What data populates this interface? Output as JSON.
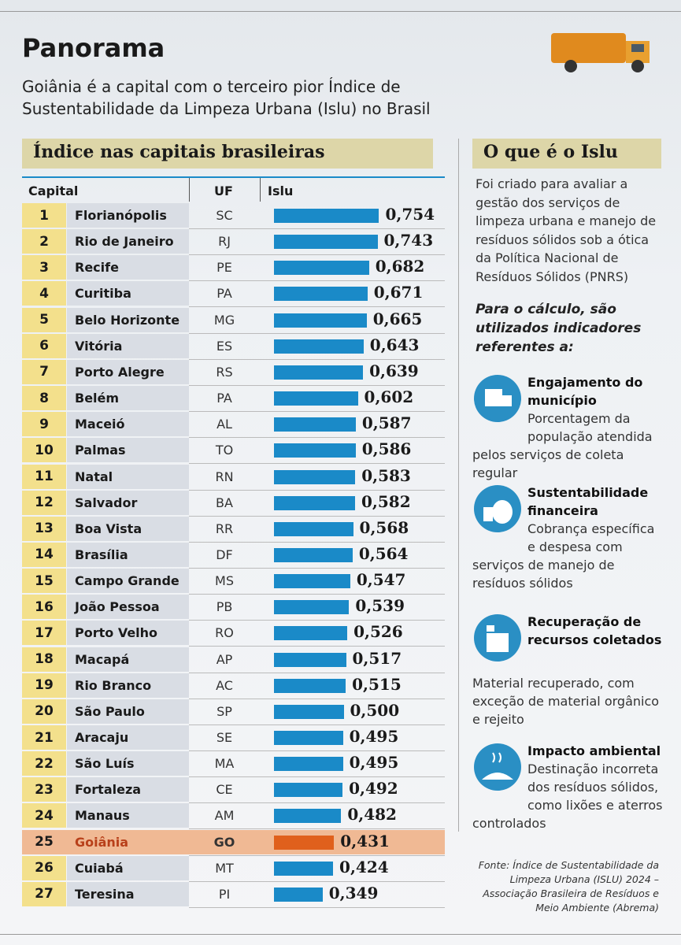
{
  "header": {
    "title": "Panorama",
    "subtitle": [
      "Goiânia é a capital com o terceiro pior Índice de",
      "Sustentabilidade da Limpeza Urbana (Islu) no Brasil"
    ]
  },
  "table": {
    "title": "Índice nas capitais brasileiras",
    "columns": [
      "Capital",
      "UF",
      "Islu"
    ],
    "rows": [
      {
        "rank": 1,
        "capital": "Florianópolis",
        "uf": "SC",
        "islu": {
          "value": 0.754,
          "label": "0,754"
        }
      },
      {
        "rank": 2,
        "capital": "Rio de Janeiro",
        "uf": "RJ",
        "islu": {
          "value": 0.743,
          "label": "0,743"
        }
      },
      {
        "rank": 3,
        "capital": "Recife",
        "uf": "PE",
        "islu": {
          "value": 0.682,
          "label": "0,682"
        }
      },
      {
        "rank": 4,
        "capital": "Curitiba",
        "uf": "PA",
        "islu": {
          "value": 0.671,
          "label": "0,671"
        }
      },
      {
        "rank": 5,
        "capital": "Belo Horizonte",
        "uf": "MG",
        "islu": {
          "value": 0.665,
          "label": "0,665"
        }
      },
      {
        "rank": 6,
        "capital": "Vitória",
        "uf": "ES",
        "islu": {
          "value": 0.643,
          "label": "0,643"
        }
      },
      {
        "rank": 7,
        "capital": "Porto Alegre",
        "uf": "RS",
        "islu": {
          "value": 0.639,
          "label": "0,639"
        }
      },
      {
        "rank": 8,
        "capital": "Belém",
        "uf": "PA",
        "islu": {
          "value": 0.602,
          "label": "0,602"
        }
      },
      {
        "rank": 9,
        "capital": "Maceió",
        "uf": "AL",
        "islu": {
          "value": 0.587,
          "label": "0,587"
        }
      },
      {
        "rank": 10,
        "capital": "Palmas",
        "uf": "TO",
        "islu": {
          "value": 0.586,
          "label": "0,586"
        }
      },
      {
        "rank": 11,
        "capital": "Natal",
        "uf": "RN",
        "islu": {
          "value": 0.583,
          "label": "0,583"
        }
      },
      {
        "rank": 12,
        "capital": "Salvador",
        "uf": "BA",
        "islu": {
          "value": 0.582,
          "label": "0,582"
        }
      },
      {
        "rank": 13,
        "capital": "Boa Vista",
        "uf": "RR",
        "islu": {
          "value": 0.568,
          "label": "0,568"
        }
      },
      {
        "rank": 14,
        "capital": "Brasília",
        "uf": "DF",
        "islu": {
          "value": 0.564,
          "label": "0,564"
        }
      },
      {
        "rank": 15,
        "capital": "Campo Grande",
        "uf": "MS",
        "islu": {
          "value": 0.547,
          "label": "0,547"
        }
      },
      {
        "rank": 16,
        "capital": "João Pessoa",
        "uf": "PB",
        "islu": {
          "value": 0.539,
          "label": "0,539"
        }
      },
      {
        "rank": 17,
        "capital": "Porto Velho",
        "uf": "RO",
        "islu": {
          "value": 0.526,
          "label": "0,526"
        }
      },
      {
        "rank": 18,
        "capital": "Macapá",
        "uf": "AP",
        "islu": {
          "value": 0.517,
          "label": "0,517"
        }
      },
      {
        "rank": 19,
        "capital": "Rio Branco",
        "uf": "AC",
        "islu": {
          "value": 0.515,
          "label": "0,515"
        }
      },
      {
        "rank": 20,
        "capital": "São Paulo",
        "uf": "SP",
        "islu": {
          "value": 0.5,
          "label": "0,500"
        }
      },
      {
        "rank": 21,
        "capital": "Aracaju",
        "uf": "SE",
        "islu": {
          "value": 0.495,
          "label": "0,495"
        }
      },
      {
        "rank": 22,
        "capital": "São Luís",
        "uf": "MA",
        "islu": {
          "value": 0.495,
          "label": "0,495"
        }
      },
      {
        "rank": 23,
        "capital": "Fortaleza",
        "uf": "CE",
        "islu": {
          "value": 0.492,
          "label": "0,492"
        }
      },
      {
        "rank": 24,
        "capital": "Manaus",
        "uf": "AM",
        "islu": {
          "value": 0.482,
          "label": "0,482"
        }
      },
      {
        "rank": 25,
        "capital": "Goiânia",
        "uf": "GO",
        "islu": {
          "value": 0.431,
          "label": "0,431"
        },
        "highlight": true
      },
      {
        "rank": 26,
        "capital": "Cuiabá",
        "uf": "MT",
        "islu": {
          "value": 0.424,
          "label": "0,424"
        }
      },
      {
        "rank": 27,
        "capital": "Teresina",
        "uf": "PI",
        "islu": {
          "value": 0.349,
          "label": "0,349"
        }
      }
    ]
  },
  "sidebar": {
    "title": "O que é o Islu",
    "intro": "Foi criado para avaliar a gestão dos serviços de limpeza urbana e manejo de resíduos sólidos sob a ótica da Política Nacional de Resíduos Sólidos (PNRS)",
    "lead": "Para o cálculo, são utilizados indicadores referentes a:",
    "indicators": [
      {
        "title": "Engajamento do município",
        "description": "Porcentagem da população atendida pelos serviços de coleta regular"
      },
      {
        "title": "Sustentabilidade financeira",
        "description": "Cobrança específica e despesa com serviços de manejo de resíduos sólidos"
      },
      {
        "title": "Recuperação de recursos coletados",
        "description": "Material recuperado, com exceção de material orgânico e rejeito"
      },
      {
        "title": "Impacto ambiental",
        "description": "Destinação incorreta dos resíduos sólidos, como lixões e aterros controlados"
      }
    ],
    "source": "Fonte: Índice de Sustentabilidade da Limpeza Urbana (ISLU) 2024 – Associação Brasileira de Resíduos e Meio Ambiente (Abrema)"
  }
}
